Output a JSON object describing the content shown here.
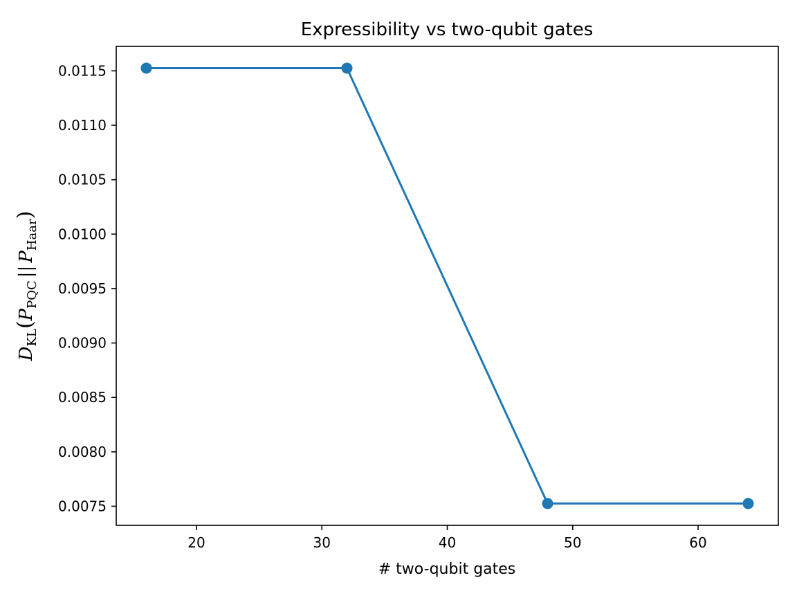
{
  "chart_data": {
    "type": "line",
    "title": "Expressibility vs two-qubit gates",
    "xlabel": "# two-qubit gates",
    "ylabel": "D_KL(P_PQC || P_Haar)",
    "ylabel_parts": {
      "main": "D",
      "main_sub": "KL",
      "open": "(",
      "p1": "P",
      "p1_sub": "PQC",
      "sep": "||",
      "p2": "P",
      "p2_sub": "Haar",
      "close": ")"
    },
    "x": [
      16,
      32,
      48,
      64
    ],
    "series": [
      {
        "values": [
          0.011525,
          0.011525,
          0.007525,
          0.007525
        ],
        "color": "#1f77b4",
        "marker": "circle"
      }
    ],
    "xlim": [
      13.6,
      66.4
    ],
    "ylim": [
      0.007325,
      0.011725
    ],
    "xticks": [
      20,
      30,
      40,
      50,
      60
    ],
    "xtick_labels": [
      "20",
      "30",
      "40",
      "50",
      "60"
    ],
    "yticks": [
      0.0075,
      0.008,
      0.0085,
      0.009,
      0.0095,
      0.01,
      0.0105,
      0.011,
      0.0115
    ],
    "ytick_labels": [
      "0.0075",
      "0.0080",
      "0.0085",
      "0.0090",
      "0.0095",
      "0.0100",
      "0.0105",
      "0.0110",
      "0.0115"
    ],
    "grid": false,
    "legend": "none"
  }
}
